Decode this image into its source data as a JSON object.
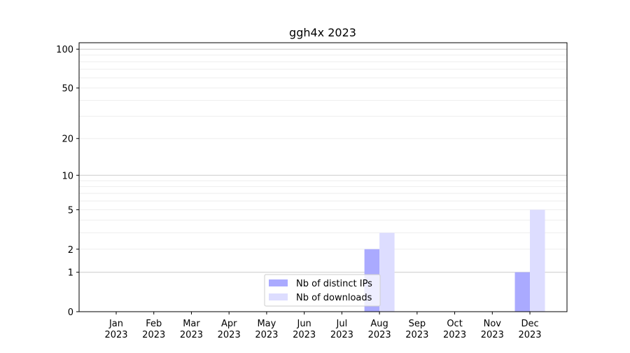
{
  "chart_data": {
    "type": "bar",
    "title": "ggh4x 2023",
    "xlabel": "",
    "ylabel": "",
    "yscale": "log(y+1)",
    "ylim": [
      0,
      112
    ],
    "yticks": [
      0,
      1,
      2,
      5,
      10,
      20,
      50,
      100
    ],
    "ytick_labels": [
      "0",
      "1",
      "2",
      "5",
      "10",
      "20",
      "50",
      "100"
    ],
    "categories": [
      "Jan\n2023",
      "Feb\n2023",
      "Mar\n2023",
      "Apr\n2023",
      "May\n2023",
      "Jun\n2023",
      "Jul\n2023",
      "Aug\n2023",
      "Sep\n2023",
      "Oct\n2023",
      "Nov\n2023",
      "Dec\n2023"
    ],
    "grid": true,
    "legend_placement": "lower-center",
    "series": [
      {
        "name": "Nb of distinct IPs",
        "color": "#aaaaff",
        "values": [
          0,
          0,
          0,
          0,
          0,
          0,
          0,
          2,
          0,
          0,
          0,
          1
        ]
      },
      {
        "name": "Nb of downloads",
        "color": "#ddddff",
        "values": [
          0,
          0,
          0,
          0,
          0,
          0,
          0,
          3,
          0,
          0,
          0,
          5
        ]
      }
    ]
  }
}
